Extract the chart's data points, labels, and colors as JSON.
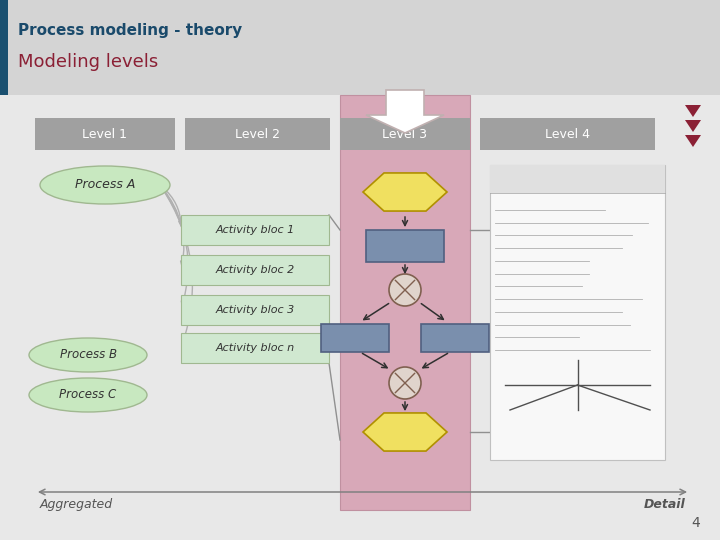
{
  "title1": "Process modeling - theory",
  "title2": "Modeling levels",
  "title1_color": "#1a4a6b",
  "title2_color": "#8b2035",
  "header_bg": "#d4d4d4",
  "content_bg": "#e8e8e8",
  "level_labels": [
    "Level 1",
    "Level 2",
    "Level 3",
    "Level 4"
  ],
  "level_box_color": "#a0a0a0",
  "level3_highlight_bg": "#d8a8b8",
  "process_ellipse_color": "#c8e8c0",
  "process_ellipse_border": "#a0b890",
  "activity_box_color": "#d0e8d0",
  "activity_box_border": "#a0b890",
  "flowchart_rect_color": "#7a8fad",
  "flowchart_hex_color": "#f0e060",
  "arrow_color": "#303030",
  "dark_red": "#8b2035",
  "aggregated_text": "Aggregated",
  "detail_text": "Detail",
  "page_number": "4",
  "stripe_color": "#1a5070",
  "doc_bg": "#f8f8f8",
  "doc_border": "#c0c0c0"
}
